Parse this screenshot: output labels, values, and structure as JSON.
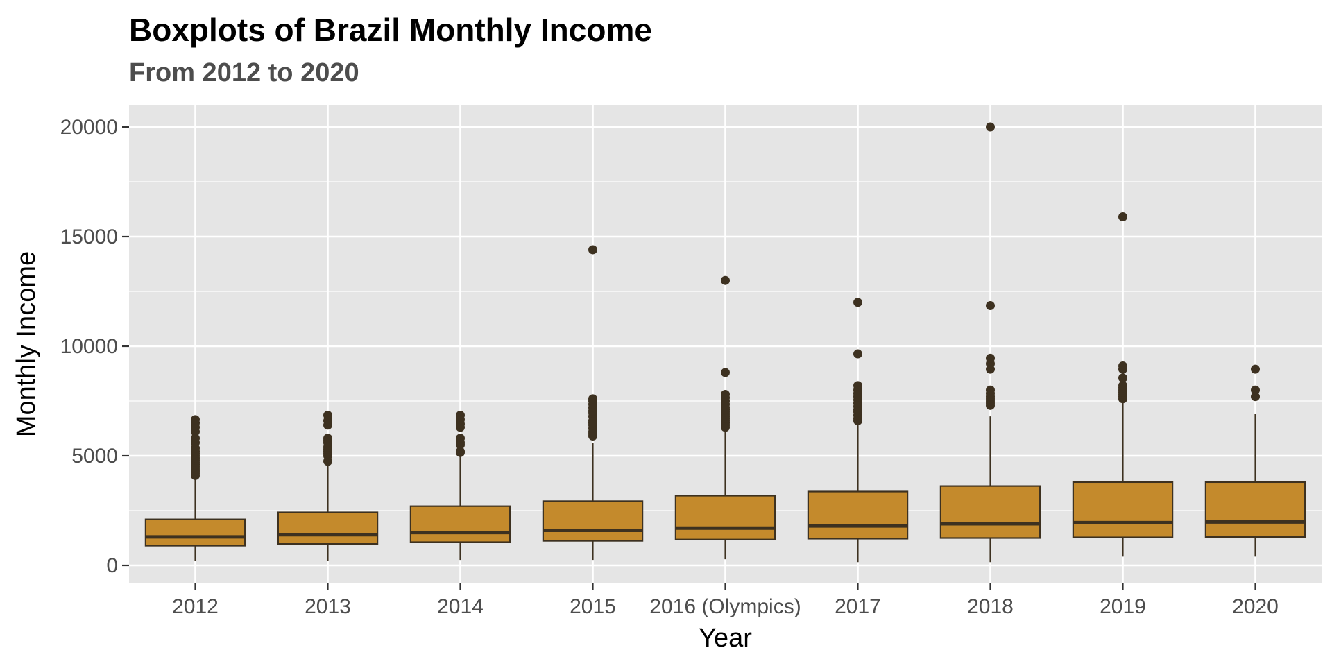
{
  "chart_data": {
    "type": "boxplot",
    "title": "Boxplots of Brazil Monthly Income",
    "subtitle": "From 2012 to 2020",
    "xlabel": "Year",
    "ylabel": "Monthly Income",
    "ylim": [
      -800,
      21000
    ],
    "yticks": [
      0,
      5000,
      10000,
      15000,
      20000
    ],
    "ytick_labels": [
      "0",
      "5000",
      "10000",
      "15000",
      "20000"
    ],
    "categories": [
      "2012",
      "2013",
      "2014",
      "2015",
      "2016 (Olympics)",
      "2017",
      "2018",
      "2019",
      "2020"
    ],
    "grid": true,
    "legend": "none",
    "colors": {
      "panel": "#e5e5e5",
      "grid": "#ffffff",
      "box_fill": "#c48a2c",
      "box_line": "#3d3120",
      "outlier": "#3d3120"
    },
    "boxes": [
      {
        "category": "2012",
        "whisker_low": 200,
        "q1": 900,
        "median": 1300,
        "q3": 2100,
        "whisker_high": 4000,
        "outliers": [
          4100,
          4200,
          4300,
          4400,
          4500,
          4600,
          4700,
          4800,
          4900,
          5000,
          5100,
          5200,
          5350,
          5600,
          5800,
          6100,
          6300,
          6500,
          6650
        ]
      },
      {
        "category": "2013",
        "whisker_low": 200,
        "q1": 980,
        "median": 1400,
        "q3": 2420,
        "whisker_high": 4700,
        "outliers": [
          4750,
          5000,
          5100,
          5200,
          5300,
          5400,
          5600,
          5700,
          5800,
          6400,
          6600,
          6850
        ]
      },
      {
        "category": "2014",
        "whisker_low": 250,
        "q1": 1060,
        "median": 1500,
        "q3": 2700,
        "whisker_high": 5100,
        "outliers": [
          5150,
          5200,
          5500,
          5600,
          5800,
          6300,
          6450,
          6650,
          6850
        ]
      },
      {
        "category": "2015",
        "whisker_low": 250,
        "q1": 1120,
        "median": 1600,
        "q3": 2930,
        "whisker_high": 5600,
        "outliers": [
          5900,
          6000,
          6100,
          6250,
          6400,
          6500,
          6600,
          6800,
          6950,
          7050,
          7200,
          7350,
          7500,
          7600,
          14400
        ]
      },
      {
        "category": "2016 (Olympics)",
        "whisker_low": 280,
        "q1": 1180,
        "median": 1700,
        "q3": 3180,
        "whisker_high": 6200,
        "outliers": [
          6300,
          6400,
          6500,
          6600,
          6700,
          6800,
          6900,
          7000,
          7100,
          7200,
          7350,
          7500,
          7650,
          7800,
          8800,
          13000
        ]
      },
      {
        "category": "2017",
        "whisker_low": 150,
        "q1": 1220,
        "median": 1800,
        "q3": 3370,
        "whisker_high": 6500,
        "outliers": [
          6600,
          6700,
          6850,
          7000,
          7100,
          7250,
          7400,
          7550,
          7700,
          7850,
          8000,
          8200,
          9650,
          12000
        ]
      },
      {
        "category": "2018",
        "whisker_low": 150,
        "q1": 1250,
        "median": 1900,
        "q3": 3620,
        "whisker_high": 6800,
        "outliers": [
          7300,
          7400,
          7500,
          7600,
          7700,
          7850,
          8000,
          8950,
          9200,
          9450,
          11850,
          20000
        ]
      },
      {
        "category": "2019",
        "whisker_low": 400,
        "q1": 1280,
        "median": 1950,
        "q3": 3800,
        "whisker_high": 7500,
        "outliers": [
          7600,
          7700,
          7800,
          7900,
          8000,
          8100,
          8200,
          8550,
          8950,
          9100,
          15900
        ]
      },
      {
        "category": "2020",
        "whisker_low": 400,
        "q1": 1300,
        "median": 1980,
        "q3": 3800,
        "whisker_high": 6900,
        "outliers": [
          7700,
          8000,
          8950
        ]
      }
    ]
  }
}
